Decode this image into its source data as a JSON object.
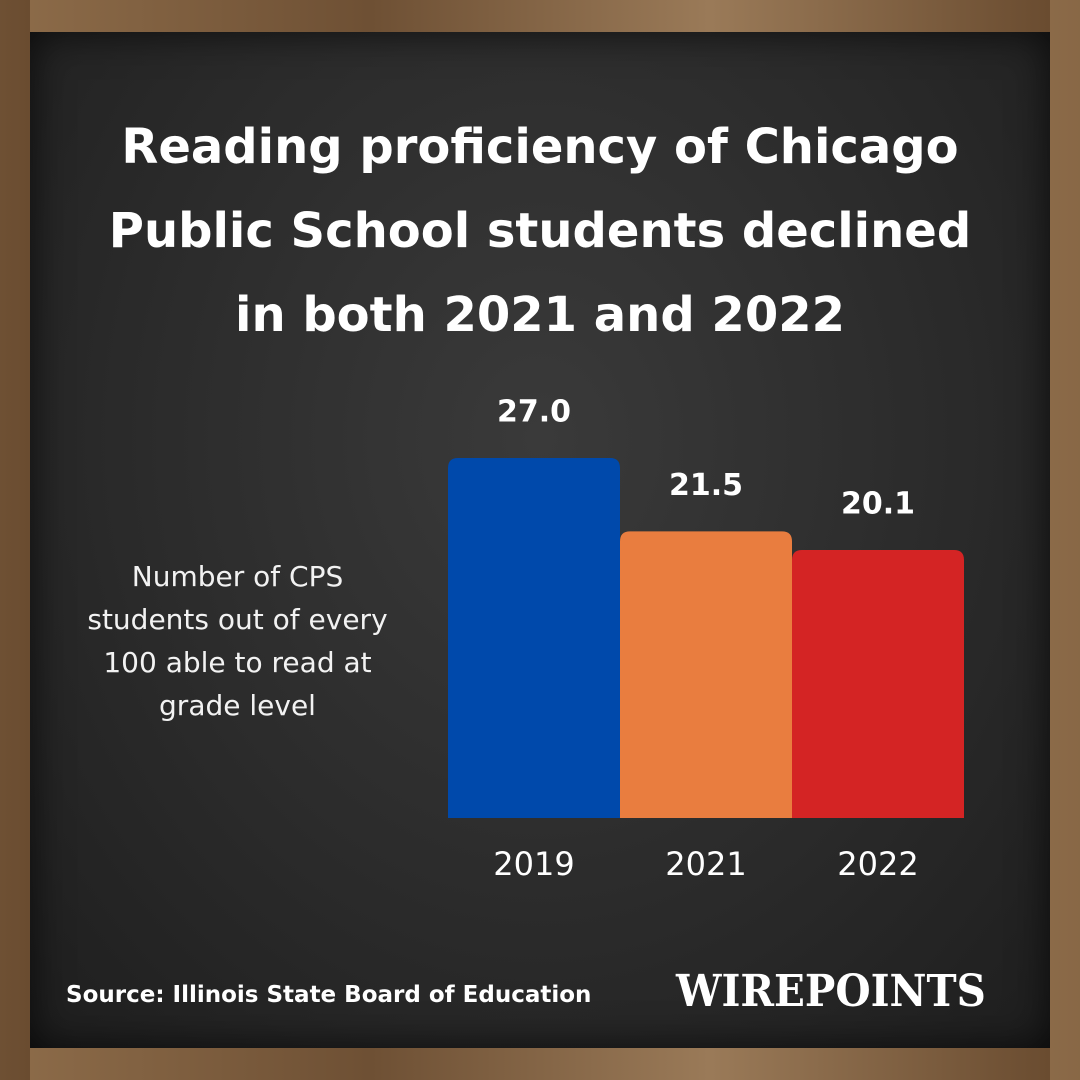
{
  "chart_data": {
    "type": "bar",
    "title": "Reading proficiency of Chicago Public School students declined in both 2021 and 2022",
    "y_label": "Number of CPS students out of every 100 able to read at grade level",
    "categories": [
      "2019",
      "2021",
      "2022"
    ],
    "values": [
      27.0,
      21.5,
      20.1
    ],
    "value_labels": [
      "27.0",
      "21.5",
      "20.1"
    ],
    "colors": [
      "#0049ab",
      "#e97d3f",
      "#d42424"
    ],
    "source": "Source: Illinois State Board of Education",
    "brand": "WIREPOINTS"
  }
}
